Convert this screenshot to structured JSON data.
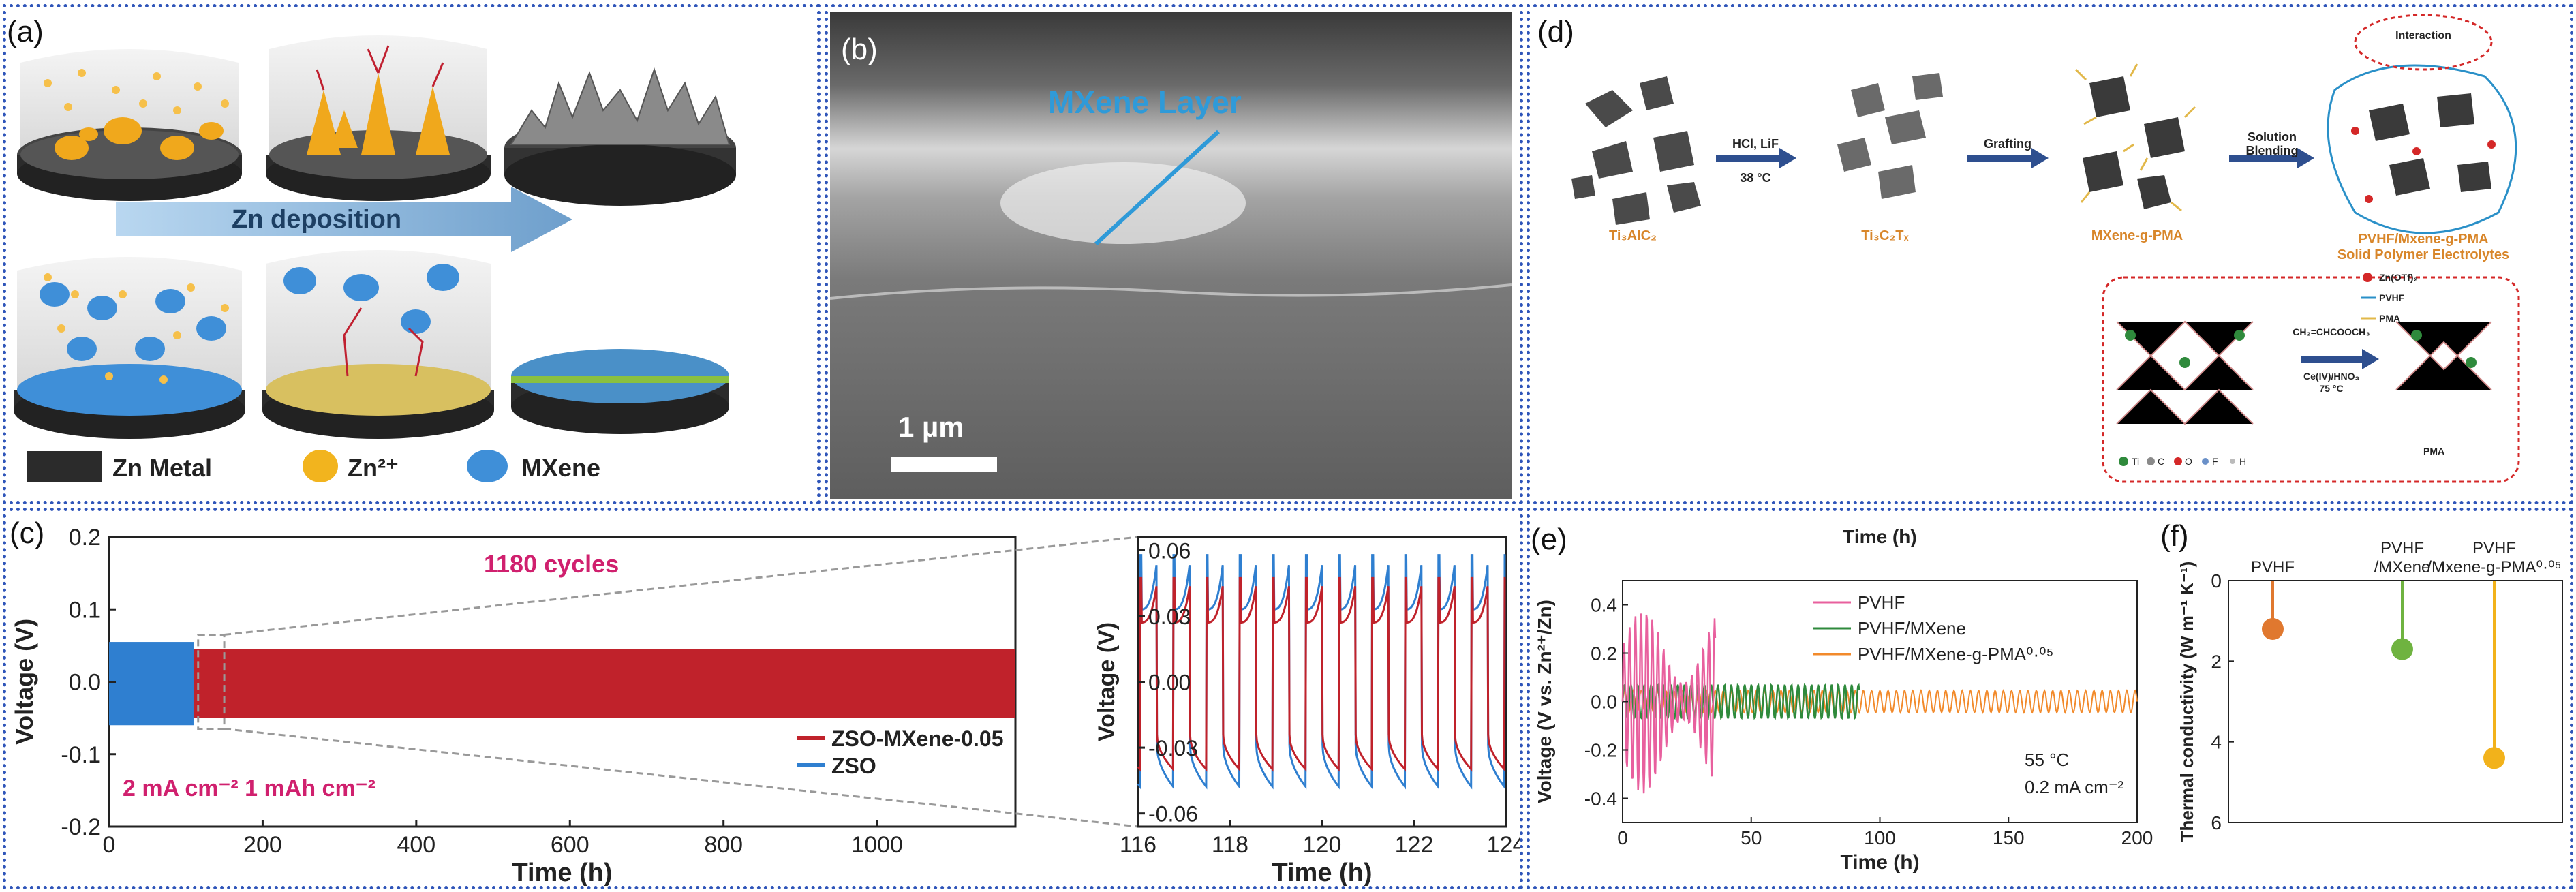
{
  "panel_labels": {
    "a": "(a)",
    "b": "(b)",
    "c": "(c)",
    "d": "(d)",
    "e": "(e)",
    "f": "(f)"
  },
  "panel_a": {
    "arrow_label": "Zn deposition",
    "legend": [
      {
        "label": "Zn Metal",
        "color": "#2b2b2b"
      },
      {
        "label": "Zn²⁺",
        "color": "#f2b41e"
      },
      {
        "label": "MXene",
        "color": "#3f8fd8"
      }
    ]
  },
  "panel_b": {
    "annotation": "MXene Layer",
    "scale_bar": "1 µm"
  },
  "panel_c": {
    "annotation": "1180 cycles",
    "conditions": "2 mA cm⁻² 1 mAh cm⁻²",
    "main_chart": {
      "type": "line",
      "xlabel": "Time (h)",
      "ylabel": "Voltage (V)",
      "xlim": [
        0,
        1180
      ],
      "ylim": [
        -0.2,
        0.2
      ],
      "xticks": [
        0,
        200,
        400,
        600,
        800,
        1000
      ],
      "yticks": [
        -0.2,
        -0.1,
        0.0,
        0.1,
        0.2
      ],
      "series": [
        {
          "name": "ZSO-MXene-0.05",
          "color": "#c0222b",
          "x_range": [
            0,
            1180
          ],
          "envelope": [
            -0.05,
            0.045
          ]
        },
        {
          "name": "ZSO",
          "color": "#2f7fd0",
          "x_range": [
            0,
            110
          ],
          "envelope": [
            -0.06,
            0.055
          ]
        }
      ]
    },
    "inset_chart": {
      "type": "line",
      "xlabel": "Time (h)",
      "ylabel": "Voltage (V)",
      "xlim": [
        116,
        124
      ],
      "ylim": [
        -0.066,
        0.066
      ],
      "xticks": [
        116,
        118,
        120,
        122,
        124
      ],
      "yticks": [
        -0.06,
        -0.03,
        0.0,
        0.03,
        0.06
      ],
      "ytick_labels": [
        "-0.06",
        "-0.03",
        "0.00",
        "0.03",
        "0.06"
      ],
      "cycle_period_h": 0.72
    }
  },
  "panel_d": {
    "labels": [
      "Ti₃AlC₂",
      "HCl, LiF",
      "38 °C",
      "Ti₃C₂Tₓ",
      "Grafting",
      "MXene-g-PMA",
      "Solution",
      "Blending",
      "PVHF/Mxene-g-PMA",
      "Solid Polymer Electrolytes",
      "Interaction",
      "CH₂=CHCOOCH₃",
      "Ce(IV)/HNO₃",
      "75 °C",
      "PMA"
    ],
    "legend_small": [
      "Zn(OTf)₂",
      "PVHF",
      "PMA"
    ],
    "atom_legend": [
      "Ti",
      "C",
      "O",
      "F",
      "H"
    ]
  },
  "panel_e": {
    "chart_data": {
      "type": "line",
      "title": "Time (h)",
      "xlabel": "Time (h)",
      "ylabel": "Voltage (V vs. Zn²⁺/Zn)",
      "xlim": [
        0,
        200
      ],
      "ylim": [
        -0.5,
        0.5
      ],
      "xticks": [
        0,
        50,
        100,
        150,
        200
      ],
      "yticks": [
        -0.4,
        -0.2,
        0.0,
        0.2,
        0.4
      ],
      "ytick_labels": [
        "-0.4",
        "-0.2",
        "0.0",
        "0.2",
        "0.4"
      ],
      "series": [
        {
          "name": "PVHF",
          "color": "#e8609e",
          "x_range": [
            0,
            36
          ],
          "amplitude": 0.38
        },
        {
          "name": "PVHF/MXene",
          "color": "#2f8a3c",
          "x_range": [
            0,
            92
          ],
          "amplitude": 0.07
        },
        {
          "name": "PVHF/MXene-g-PMA⁰·⁰⁵",
          "color": "#f28a2b",
          "x_range": [
            0,
            200
          ],
          "amplitude": 0.045
        }
      ],
      "annotations": [
        "55 °C",
        "0.2 mA cm⁻²"
      ]
    }
  },
  "panel_f": {
    "chart_data": {
      "type": "scatter",
      "ylabel": "Thermal conductivity (W m⁻¹ K⁻¹)",
      "ylim": [
        0,
        6
      ],
      "yticks": [
        0,
        2,
        4,
        6
      ],
      "categories": [
        "PVHF",
        "PVHF\n/MXene",
        "PVHF\n/Mxene-g-PMA⁰·⁰⁵"
      ],
      "values": [
        1.2,
        1.7,
        4.4
      ],
      "colors": [
        "#e0782f",
        "#6fb340",
        "#f2b21b"
      ]
    }
  }
}
